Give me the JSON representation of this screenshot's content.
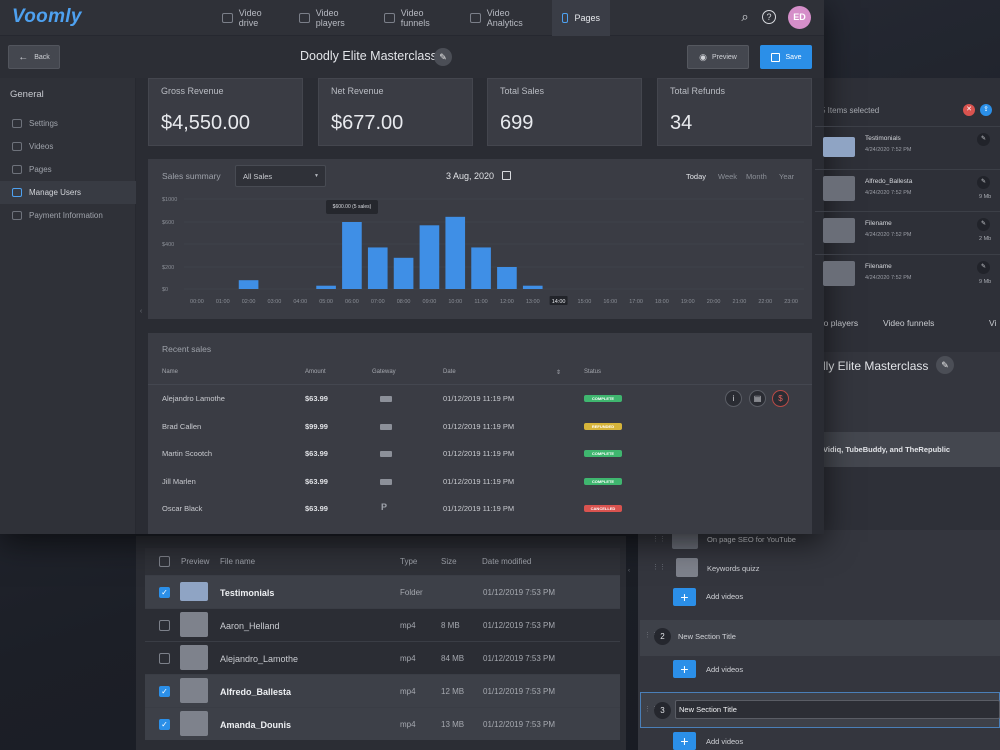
{
  "app": {
    "logo": "Voomly"
  },
  "nav": [
    {
      "label": "Video drive",
      "icon": "folder-icon",
      "active": false
    },
    {
      "label": "Video players",
      "icon": "player-icon",
      "active": false
    },
    {
      "label": "Video funnels",
      "icon": "funnel-icon",
      "active": false
    },
    {
      "label": "Video Analytics",
      "icon": "analytics-icon",
      "active": false
    },
    {
      "label": "Pages",
      "icon": "pages-icon",
      "active": true
    }
  ],
  "header": {
    "avatar_initials": "ED"
  },
  "subbar": {
    "back_label": "Back",
    "title": "Doodly Elite Masterclass",
    "preview_label": "Preview",
    "save_label": "Save"
  },
  "sidebar": {
    "title": "General",
    "items": [
      {
        "label": "Settings",
        "icon": "gear-icon"
      },
      {
        "label": "Videos",
        "icon": "video-icon"
      },
      {
        "label": "Pages",
        "icon": "page-icon"
      },
      {
        "label": "Manage Users",
        "icon": "users-icon",
        "active": true
      },
      {
        "label": "Payment Information",
        "icon": "tag-icon"
      }
    ]
  },
  "stats": [
    {
      "label": "Gross Revenue",
      "value": "$4,550.00"
    },
    {
      "label": "Net Revenue",
      "value": "$677.00"
    },
    {
      "label": "Total Sales",
      "value": "699"
    },
    {
      "label": "Total Refunds",
      "value": "34"
    }
  ],
  "summary": {
    "label": "Sales summary",
    "filter": "All Sales",
    "date": "3 Aug, 2020",
    "ranges": [
      "Today",
      "Week",
      "Month",
      "Year"
    ],
    "active_range": "Today",
    "tooltip": "$600.00 (5 sales)"
  },
  "chart_data": {
    "type": "bar",
    "categories": [
      "00:00",
      "01:00",
      "02:00",
      "03:00",
      "04:00",
      "05:00",
      "06:00",
      "07:00",
      "08:00",
      "09:00",
      "10:00",
      "11:00",
      "12:00",
      "13:00",
      "14:00",
      "15:00",
      "16:00",
      "17:00",
      "18:00",
      "19:00",
      "20:00",
      "21:00",
      "22:00",
      "23:00"
    ],
    "values": [
      0,
      0,
      80,
      0,
      0,
      30,
      600,
      370,
      280,
      570,
      690,
      370,
      200,
      30,
      0,
      0,
      0,
      0,
      0,
      0,
      0,
      0,
      0,
      0
    ],
    "yticks": [
      "$1000",
      "$600",
      "$400",
      "$200",
      "$0"
    ],
    "ylim": [
      0,
      1000
    ],
    "highlighted_category": "14:00",
    "bar_color": "#3f8fe6"
  },
  "recent": {
    "title": "Recent sales",
    "columns": [
      "Name",
      "Amount",
      "Gateway",
      "Date",
      "Status"
    ],
    "rows": [
      {
        "name": "Alejandro Lamothe",
        "amount": "$63.99",
        "gateway": "stripe",
        "date": "01/12/2019 11:19 PM",
        "status": "COMPLETE",
        "status_color": "#3fb66f"
      },
      {
        "name": "Brad Callen",
        "amount": "$99.99",
        "gateway": "stripe",
        "date": "01/12/2019 11:19 PM",
        "status": "REFUNDED",
        "status_color": "#d6b43a"
      },
      {
        "name": "Martin Scootch",
        "amount": "$63.99",
        "gateway": "stripe",
        "date": "01/12/2019 11:19 PM",
        "status": "COMPLETE",
        "status_color": "#3fb66f"
      },
      {
        "name": "Jill Marlen",
        "amount": "$63.99",
        "gateway": "stripe",
        "date": "01/12/2019 11:19 PM",
        "status": "COMPLETE",
        "status_color": "#3fb66f"
      },
      {
        "name": "Oscar Black",
        "amount": "$63.99",
        "gateway": "paypal",
        "date": "01/12/2019 11:19 PM",
        "status": "CANCELLED",
        "status_color": "#d9534f"
      }
    ]
  },
  "right_panel": {
    "selected_text": "5 Items selected",
    "items": [
      {
        "name": "Testimonials",
        "date": "4/24/2020 7:52 PM",
        "size": "",
        "type": "folder"
      },
      {
        "name": "Alfredo_Ballesta",
        "date": "4/24/2020 7:52 PM",
        "size": "9 Mb",
        "type": "video"
      },
      {
        "name": "Filename",
        "date": "4/24/2020 7:52 PM",
        "size": "2 Mb",
        "type": "video"
      },
      {
        "name": "Filename",
        "date": "4/24/2020 7:52 PM",
        "size": "9 Mb",
        "type": "video"
      }
    ],
    "nav_partial": [
      "leo players",
      "Video funnels",
      "Vi"
    ],
    "title_partial": "dly Elite Masterclass",
    "banner_text": "Vidiq, TubeBuddy, and TheRepublic"
  },
  "file_manager": {
    "columns": [
      "Preview",
      "File name",
      "Type",
      "Size",
      "Date modified"
    ],
    "rows": [
      {
        "name": "Testimonials",
        "type": "Folder",
        "size": "",
        "date": "01/12/2019 7:53 PM",
        "checked": true,
        "folder": true
      },
      {
        "name": "Aaron_Helland",
        "type": "mp4",
        "size": "8 MB",
        "date": "01/12/2019 7:53 PM",
        "checked": false
      },
      {
        "name": "Alejandro_Lamothe",
        "type": "mp4",
        "size": "84 MB",
        "date": "01/12/2019 7:53 PM",
        "checked": false
      },
      {
        "name": "Alfredo_Ballesta",
        "type": "mp4",
        "size": "12 MB",
        "date": "01/12/2019 7:53 PM",
        "checked": true
      },
      {
        "name": "Amanda_Dounis",
        "type": "mp4",
        "size": "13 MB",
        "date": "01/12/2019 7:53 PM",
        "checked": true
      }
    ]
  },
  "sections": {
    "videos": [
      "On page SEO for YouTube",
      "Keywords quizz"
    ],
    "add_label": "Add videos",
    "items": [
      {
        "num": "2",
        "title": "New Section Title"
      },
      {
        "num": "3",
        "title": "New Section Title"
      }
    ]
  }
}
